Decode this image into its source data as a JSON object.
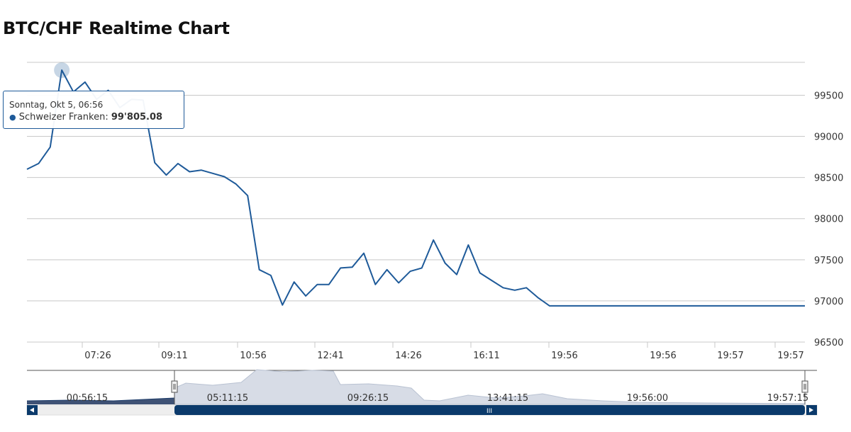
{
  "page": {
    "title": "BTC/CHF Realtime Chart"
  },
  "colors": {
    "series": "#1e5a99",
    "grid": "#c8c8c8",
    "navigator_fill": "#d7dce6",
    "scrollbar": "#0b3a6b"
  },
  "chart_data": {
    "type": "line",
    "title": "BTC/CHF Realtime Chart",
    "series": [
      {
        "name": "Schweizer Franken",
        "values": [
          98600,
          98670,
          98870,
          99805,
          99540,
          99660,
          99450,
          99560,
          99350,
          99450,
          99440,
          98680,
          98530,
          98670,
          98570,
          98590,
          98550,
          98510,
          98420,
          98280,
          97380,
          97310,
          96950,
          97230,
          97060,
          97200,
          97200,
          97400,
          97410,
          97580,
          97200,
          97380,
          97220,
          97360,
          97400,
          97740,
          97460,
          97320,
          97680,
          97340,
          97250,
          97160,
          97130,
          97160,
          97040,
          96940,
          96940,
          96940,
          96940,
          96940,
          96940,
          96940,
          96940,
          96940
        ]
      }
    ],
    "x_tick_labels": [
      "07:26",
      "09:11",
      "10:56",
      "12:41",
      "14:26",
      "16:11",
      "19:56",
      "19:56",
      "19:57",
      "19:57"
    ],
    "ylim": [
      96500,
      99900
    ],
    "y_ticks": [
      96500,
      97000,
      97500,
      98000,
      98500,
      99000,
      99500
    ],
    "grid": true,
    "legend": "none",
    "tooltip": {
      "date": "Sonntag, Okt 5, 06:56",
      "series_label": "Schweizer Franken",
      "value": "99'805.08",
      "point_index": 3
    },
    "navigator": {
      "labels": [
        "00:56:15",
        "05:11:15",
        "09:26:15",
        "13:41:15",
        "19:56:00",
        "19:57:15"
      ],
      "scrollbar_label": "III"
    }
  }
}
